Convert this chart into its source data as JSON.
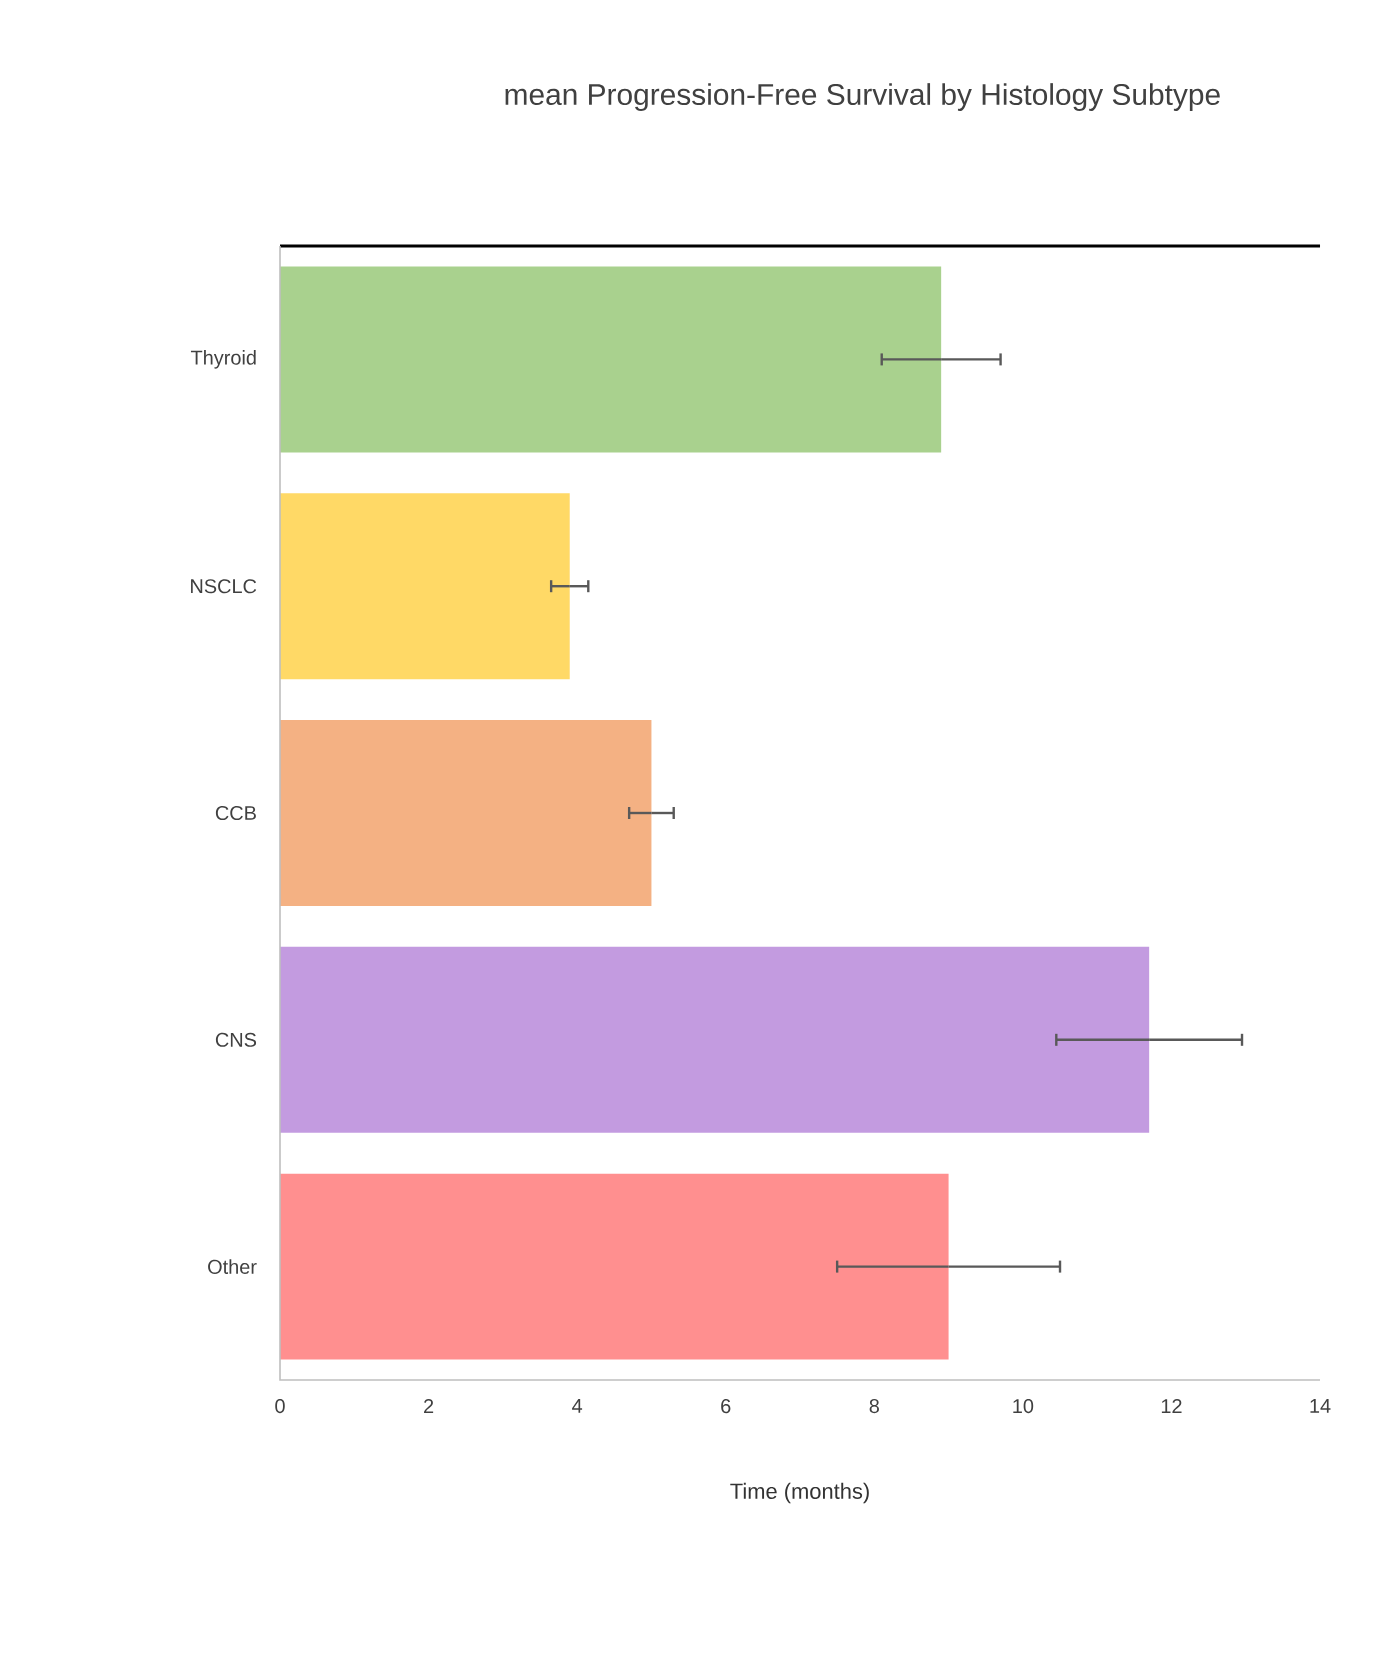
{
  "chart_data": {
    "type": "bar",
    "orientation": "horizontal",
    "title": "mean Progression-Free Survival by Histology Subtype",
    "xlabel": "Time (months)",
    "categories": [
      "Thyroid",
      "NSCLC",
      "CCB",
      "CNS",
      "Other"
    ],
    "values": [
      8.9,
      3.9,
      5.0,
      11.7,
      9.0
    ],
    "errors": [
      0.8,
      0.25,
      0.3,
      1.25,
      1.5
    ],
    "colors": [
      "#a9d18e",
      "#ffd966",
      "#f4b183",
      "#c39be0",
      "#ff8f8f"
    ],
    "xlim": [
      0,
      14
    ],
    "xticks": [
      0,
      2,
      4,
      6,
      8,
      10,
      12,
      14
    ],
    "grid": false
  }
}
